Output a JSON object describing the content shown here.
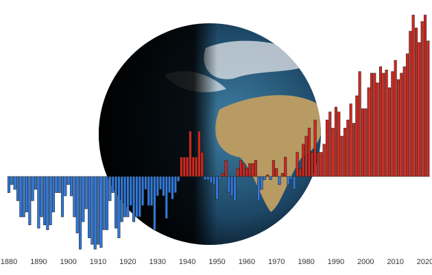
{
  "chart_data": {
    "type": "bar",
    "x": [
      1880,
      1881,
      1882,
      1883,
      1884,
      1885,
      1886,
      1887,
      1888,
      1889,
      1890,
      1891,
      1892,
      1893,
      1894,
      1895,
      1896,
      1897,
      1898,
      1899,
      1900,
      1901,
      1902,
      1903,
      1904,
      1905,
      1906,
      1907,
      1908,
      1909,
      1910,
      1911,
      1912,
      1913,
      1914,
      1915,
      1916,
      1917,
      1918,
      1919,
      1920,
      1921,
      1922,
      1923,
      1924,
      1925,
      1926,
      1927,
      1928,
      1929,
      1930,
      1931,
      1932,
      1933,
      1934,
      1935,
      1936,
      1937,
      1938,
      1939,
      1940,
      1941,
      1942,
      1943,
      1944,
      1945,
      1946,
      1947,
      1948,
      1949,
      1950,
      1951,
      1952,
      1953,
      1954,
      1955,
      1956,
      1957,
      1958,
      1959,
      1960,
      1961,
      1962,
      1963,
      1964,
      1965,
      1966,
      1967,
      1968,
      1969,
      1970,
      1971,
      1972,
      1973,
      1974,
      1975,
      1976,
      1977,
      1978,
      1979,
      1980,
      1981,
      1982,
      1983,
      1984,
      1985,
      1986,
      1987,
      1988,
      1989,
      1990,
      1991,
      1992,
      1993,
      1994,
      1995,
      1996,
      1997,
      1998,
      1999,
      2000,
      2001,
      2002,
      2003,
      2004,
      2005,
      2006,
      2007,
      2008,
      2009,
      2010,
      2011,
      2012,
      2013,
      2014,
      2015,
      2016,
      2017,
      2018,
      2019,
      2020,
      2021
    ],
    "values": [
      -0.1,
      -0.05,
      -0.08,
      -0.15,
      -0.25,
      -0.25,
      -0.22,
      -0.3,
      -0.15,
      -0.08,
      -0.32,
      -0.25,
      -0.3,
      -0.33,
      -0.3,
      -0.22,
      -0.1,
      -0.1,
      -0.25,
      -0.12,
      -0.05,
      -0.12,
      -0.25,
      -0.35,
      -0.45,
      -0.28,
      -0.2,
      -0.38,
      -0.42,
      -0.45,
      -0.42,
      -0.44,
      -0.33,
      -0.33,
      -0.15,
      -0.1,
      -0.32,
      -0.38,
      -0.28,
      -0.25,
      -0.25,
      -0.18,
      -0.28,
      -0.25,
      -0.25,
      -0.18,
      -0.08,
      -0.18,
      -0.18,
      -0.33,
      -0.12,
      -0.08,
      -0.12,
      -0.26,
      -0.1,
      -0.14,
      -0.1,
      -0.03,
      0.12,
      0.12,
      0.12,
      0.28,
      0.12,
      0.12,
      0.28,
      0.15,
      -0.02,
      -0.02,
      -0.04,
      -0.05,
      -0.14,
      -0.02,
      0.02,
      0.1,
      -0.1,
      -0.12,
      -0.15,
      0.05,
      0.1,
      0.08,
      0.05,
      0.08,
      0.08,
      0.1,
      -0.15,
      -0.08,
      -0.02,
      0.01,
      -0.02,
      0.1,
      0.05,
      -0.05,
      0.02,
      0.12,
      -0.05,
      -0.02,
      -0.08,
      0.15,
      0.05,
      0.2,
      0.25,
      0.3,
      0.15,
      0.35,
      0.15,
      0.15,
      0.2,
      0.35,
      0.4,
      0.3,
      0.43,
      0.4,
      0.25,
      0.3,
      0.35,
      0.45,
      0.33,
      0.5,
      0.65,
      0.42,
      0.42,
      0.55,
      0.64,
      0.64,
      0.58,
      0.68,
      0.64,
      0.66,
      0.55,
      0.65,
      0.72,
      0.6,
      0.64,
      0.68,
      0.76,
      0.9,
      1.0,
      0.92,
      0.83,
      0.96,
      1.0,
      0.84
    ],
    "positive_color": "#d8261c",
    "negative_color": "#2f7be0",
    "xlim": [
      1879.5,
      2021.5
    ],
    "xticks": [
      1880,
      1890,
      1900,
      1910,
      1920,
      1930,
      1940,
      1950,
      1960,
      1970,
      1980,
      1990,
      2000,
      2010,
      2020
    ],
    "ylim": [
      -0.5,
      1.0
    ],
    "grid": false
  }
}
